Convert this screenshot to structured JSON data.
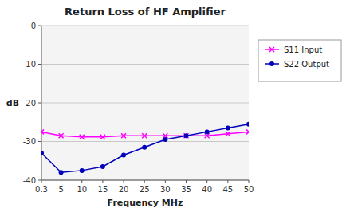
{
  "chart_data": {
    "type": "line",
    "title": "Return Loss of HF Amplifier",
    "x_label": "Frequency MHz",
    "y_label": "dB",
    "x": [
      0.3,
      5,
      10,
      15,
      20,
      25,
      30,
      35,
      40,
      45,
      50
    ],
    "series": [
      {
        "name": "S11 Input",
        "color": "#ff00ff",
        "marker": "x",
        "values": [
          -27.5,
          -28.5,
          -28.8,
          -28.8,
          -28.5,
          -28.5,
          -28.5,
          -28.5,
          -28.5,
          -28.0,
          -27.5
        ]
      },
      {
        "name": "S22 Output",
        "color": "#0000bb",
        "marker": "o",
        "values": [
          -33.0,
          -38.0,
          -37.5,
          -36.5,
          -33.5,
          -31.5,
          -29.5,
          -28.5,
          -27.5,
          -26.5,
          -25.5
        ]
      }
    ],
    "xlim": [
      0.3,
      50
    ],
    "ylim": [
      -40,
      0
    ],
    "xticks": [
      0.3,
      5,
      10,
      15,
      20,
      25,
      30,
      35,
      40,
      45,
      50
    ],
    "yticks": [
      0,
      -10,
      -20,
      -30,
      -40
    ],
    "grid": true,
    "legend": "right"
  }
}
